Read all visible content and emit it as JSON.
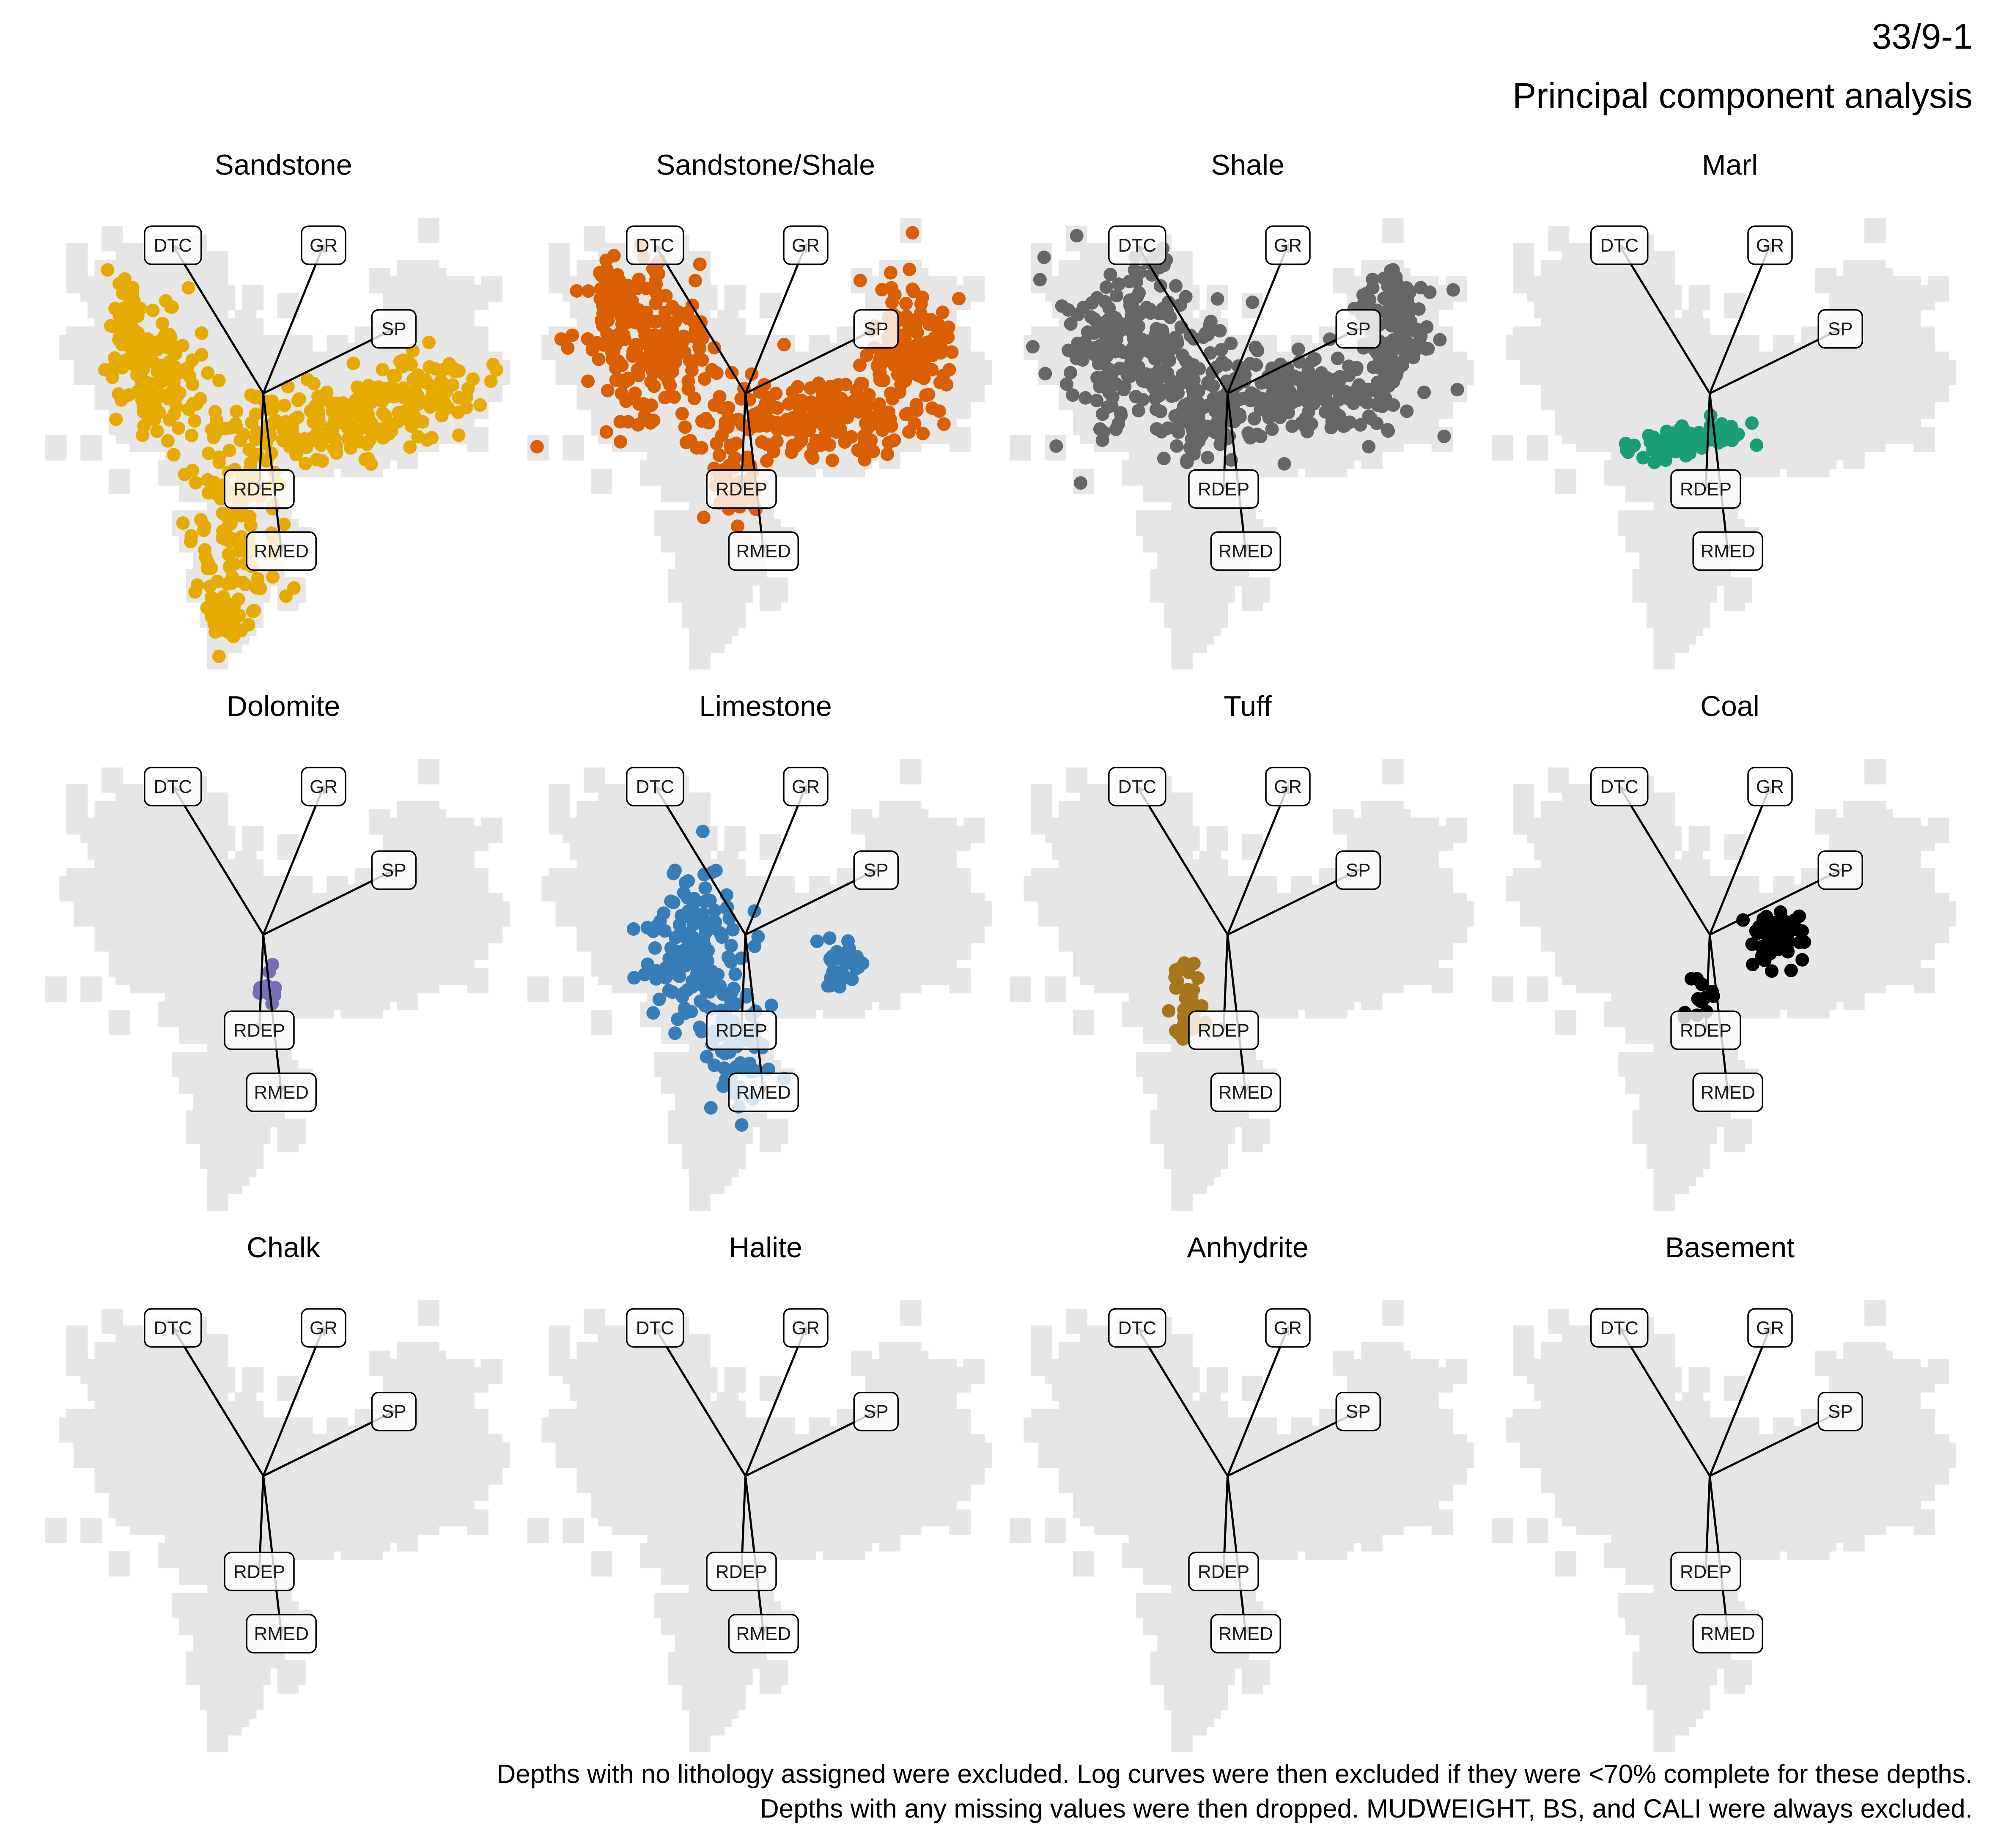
{
  "title": "33/9-1",
  "subtitle": "Principal component analysis",
  "caption": [
    "Depths with no lithology assigned were excluded. Log curves were then excluded if they were <70% complete for these depths.",
    "Depths with any missing values were then dropped. MUDWEIGHT, BS, and CALI were always excluded."
  ],
  "chart_data": {
    "type": "scatter",
    "description_of_axes": "",
    "xlim": [
      -1.1,
      1.3
    ],
    "ylim": [
      -1.15,
      0.85
    ],
    "background_color": "#e6e6e6",
    "loadings": [
      {
        "name": "DTC",
        "x": -0.45,
        "y": 0.62
      },
      {
        "name": "GR",
        "x": 0.3,
        "y": 0.62
      },
      {
        "name": "SP",
        "x": 0.65,
        "y": 0.27
      },
      {
        "name": "RDEP",
        "x": -0.02,
        "y": -0.4
      },
      {
        "name": "RMED",
        "x": 0.09,
        "y": -0.66
      }
    ],
    "series": [
      {
        "name": "Sandstone",
        "color": "#e6ab02",
        "clusters": [
          {
            "x": -0.55,
            "y": 0.08,
            "sx": 0.14,
            "sy": 0.18,
            "n": 120
          },
          {
            "x": -0.7,
            "y": 0.35,
            "sx": 0.06,
            "sy": 0.12,
            "n": 35
          },
          {
            "x": 0.35,
            "y": -0.12,
            "sx": 0.4,
            "sy": 0.12,
            "n": 160
          },
          {
            "x": 0.8,
            "y": 0.02,
            "sx": 0.18,
            "sy": 0.1,
            "n": 70
          },
          {
            "x": -0.15,
            "y": -0.52,
            "sx": 0.16,
            "sy": 0.24,
            "n": 110
          },
          {
            "x": -0.15,
            "y": -0.92,
            "sx": 0.08,
            "sy": 0.08,
            "n": 30
          }
        ]
      },
      {
        "name": "Sandstone/Shale",
        "color": "#d95f02",
        "clusters": [
          {
            "x": -0.5,
            "y": 0.18,
            "sx": 0.22,
            "sy": 0.2,
            "n": 190
          },
          {
            "x": -0.68,
            "y": 0.42,
            "sx": 0.06,
            "sy": 0.1,
            "n": 30
          },
          {
            "x": 0.32,
            "y": -0.1,
            "sx": 0.38,
            "sy": 0.11,
            "n": 190
          },
          {
            "x": 0.82,
            "y": 0.2,
            "sx": 0.16,
            "sy": 0.18,
            "n": 120
          },
          {
            "x": -0.05,
            "y": -0.38,
            "sx": 0.1,
            "sy": 0.1,
            "n": 40
          }
        ]
      },
      {
        "name": "Shale",
        "color": "#666666",
        "clusters": [
          {
            "x": -0.45,
            "y": 0.2,
            "sx": 0.25,
            "sy": 0.22,
            "n": 230
          },
          {
            "x": -0.1,
            "y": -0.1,
            "sx": 0.15,
            "sy": 0.12,
            "n": 80
          },
          {
            "x": 0.4,
            "y": 0.0,
            "sx": 0.32,
            "sy": 0.12,
            "n": 170
          },
          {
            "x": 0.82,
            "y": 0.28,
            "sx": 0.14,
            "sy": 0.18,
            "n": 120
          }
        ]
      },
      {
        "name": "Marl",
        "color": "#1b9e77",
        "clusters": [
          {
            "x": -0.05,
            "y": -0.18,
            "sx": 0.18,
            "sy": 0.04,
            "n": 60
          },
          {
            "x": -0.25,
            "y": -0.25,
            "sx": 0.1,
            "sy": 0.03,
            "n": 20
          }
        ]
      },
      {
        "name": "Dolomite",
        "color": "#7570b3",
        "clusters": [
          {
            "x": 0.02,
            "y": -0.22,
            "sx": 0.04,
            "sy": 0.05,
            "n": 14
          }
        ]
      },
      {
        "name": "Limestone",
        "color": "#377eb8",
        "clusters": [
          {
            "x": -0.25,
            "y": -0.05,
            "sx": 0.18,
            "sy": 0.22,
            "n": 150
          },
          {
            "x": -0.05,
            "y": -0.5,
            "sx": 0.1,
            "sy": 0.15,
            "n": 60
          },
          {
            "x": 0.48,
            "y": -0.13,
            "sx": 0.08,
            "sy": 0.07,
            "n": 32
          }
        ]
      },
      {
        "name": "Tuff",
        "color": "#a6761d",
        "clusters": [
          {
            "x": -0.2,
            "y": -0.3,
            "sx": 0.05,
            "sy": 0.13,
            "n": 45
          }
        ]
      },
      {
        "name": "Coal",
        "color": "#000000",
        "clusters": [
          {
            "x": 0.32,
            "y": -0.02,
            "sx": 0.1,
            "sy": 0.07,
            "n": 55
          },
          {
            "x": -0.05,
            "y": -0.3,
            "sx": 0.06,
            "sy": 0.08,
            "n": 12
          }
        ]
      },
      {
        "name": "Chalk",
        "color": "#000000",
        "clusters": []
      },
      {
        "name": "Halite",
        "color": "#000000",
        "clusters": []
      },
      {
        "name": "Anhydrite",
        "color": "#000000",
        "clusters": []
      },
      {
        "name": "Basement",
        "color": "#000000",
        "clusters": []
      }
    ]
  }
}
